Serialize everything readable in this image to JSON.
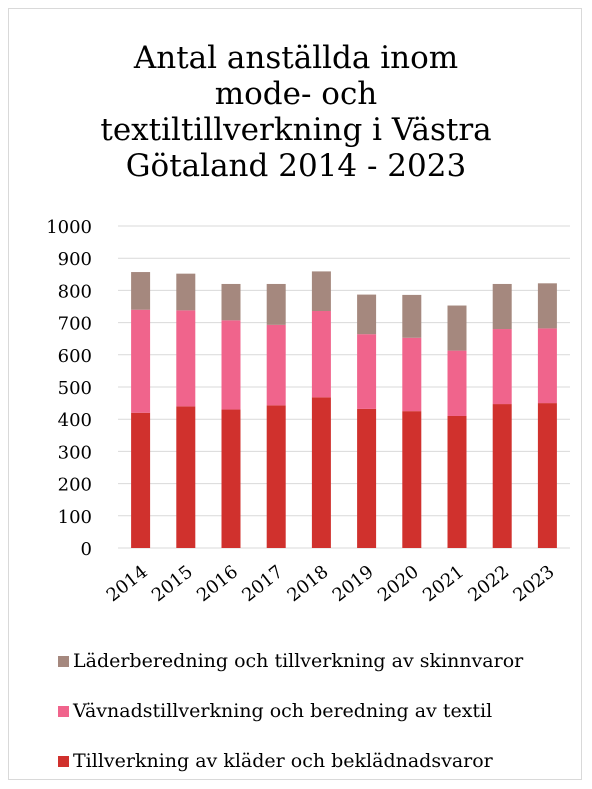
{
  "chart_data": {
    "type": "bar",
    "stacked": true,
    "title_lines": [
      "Antal anställda inom",
      "mode- och",
      "textiltillverkning i Västra",
      "Götaland 2014 - 2023"
    ],
    "categories": [
      "2014",
      "2015",
      "2016",
      "2017",
      "2018",
      "2019",
      "2020",
      "2021",
      "2022",
      "2023"
    ],
    "series": [
      {
        "name": "Tillverkning av kläder och beklädnadsvaror",
        "color": "#d0312d",
        "values": [
          420,
          440,
          430,
          443,
          468,
          432,
          425,
          410,
          447,
          450
        ]
      },
      {
        "name": "Vävnadstillverkning och beredning av textil",
        "color": "#f0648c",
        "values": [
          320,
          298,
          277,
          250,
          268,
          232,
          228,
          203,
          233,
          232
        ]
      },
      {
        "name": "Läderberedning och tillverkning av skinnvaror",
        "color": "#a5887e",
        "values": [
          117,
          114,
          113,
          127,
          123,
          123,
          133,
          140,
          140,
          140
        ]
      }
    ],
    "yticks": [
      "1000",
      "900",
      "800",
      "700",
      "600",
      "500",
      "400",
      "300",
      "200",
      "100",
      "0"
    ],
    "ylim": [
      0,
      1000
    ],
    "grid": true,
    "legend_position": "bottom",
    "legend_order": [
      2,
      1,
      0
    ]
  }
}
